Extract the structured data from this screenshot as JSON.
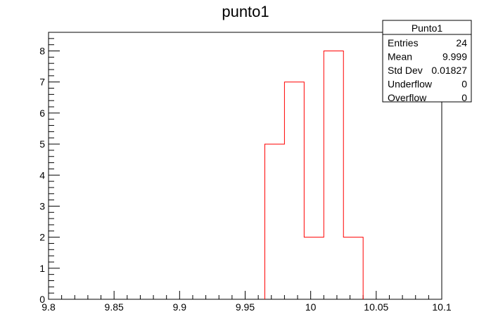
{
  "window": {
    "title": "punto1"
  },
  "chart_data": {
    "type": "bar",
    "subtype": "histogram-step",
    "title": "punto1",
    "xlabel": "",
    "ylabel": "",
    "xlim": [
      9.8,
      10.1
    ],
    "ylim": [
      0,
      8.6
    ],
    "bin_width": 0.015,
    "bins": [
      {
        "x_low": 9.965,
        "x_high": 9.98,
        "count": 5
      },
      {
        "x_low": 9.98,
        "x_high": 9.995,
        "count": 7
      },
      {
        "x_low": 9.995,
        "x_high": 10.01,
        "count": 2
      },
      {
        "x_low": 10.01,
        "x_high": 10.025,
        "count": 8
      },
      {
        "x_low": 10.025,
        "x_high": 10.04,
        "count": 2
      }
    ],
    "xticks": [
      {
        "value": 9.8,
        "label": "9.8"
      },
      {
        "value": 9.85,
        "label": "9.85"
      },
      {
        "value": 9.9,
        "label": "9.9"
      },
      {
        "value": 9.95,
        "label": "9.95"
      },
      {
        "value": 10.0,
        "label": "10"
      },
      {
        "value": 10.05,
        "label": "10.05"
      },
      {
        "value": 10.1,
        "label": "10.1"
      }
    ],
    "yticks": [
      {
        "value": 0,
        "label": "0"
      },
      {
        "value": 1,
        "label": "1"
      },
      {
        "value": 2,
        "label": "2"
      },
      {
        "value": 3,
        "label": "3"
      },
      {
        "value": 4,
        "label": "4"
      },
      {
        "value": 5,
        "label": "5"
      },
      {
        "value": 6,
        "label": "6"
      },
      {
        "value": 7,
        "label": "7"
      },
      {
        "value": 8,
        "label": "8"
      }
    ],
    "line_color": "#ff0000",
    "grid": false,
    "legend": "none"
  },
  "stats_box": {
    "title": "Punto1",
    "rows": [
      {
        "label": "Entries",
        "value": "24"
      },
      {
        "label": "Mean",
        "value": "9.999"
      },
      {
        "label": "Std Dev",
        "value": "0.01827"
      },
      {
        "label": "Underflow",
        "value": "0"
      },
      {
        "label": "Overflow",
        "value": "0"
      }
    ]
  }
}
